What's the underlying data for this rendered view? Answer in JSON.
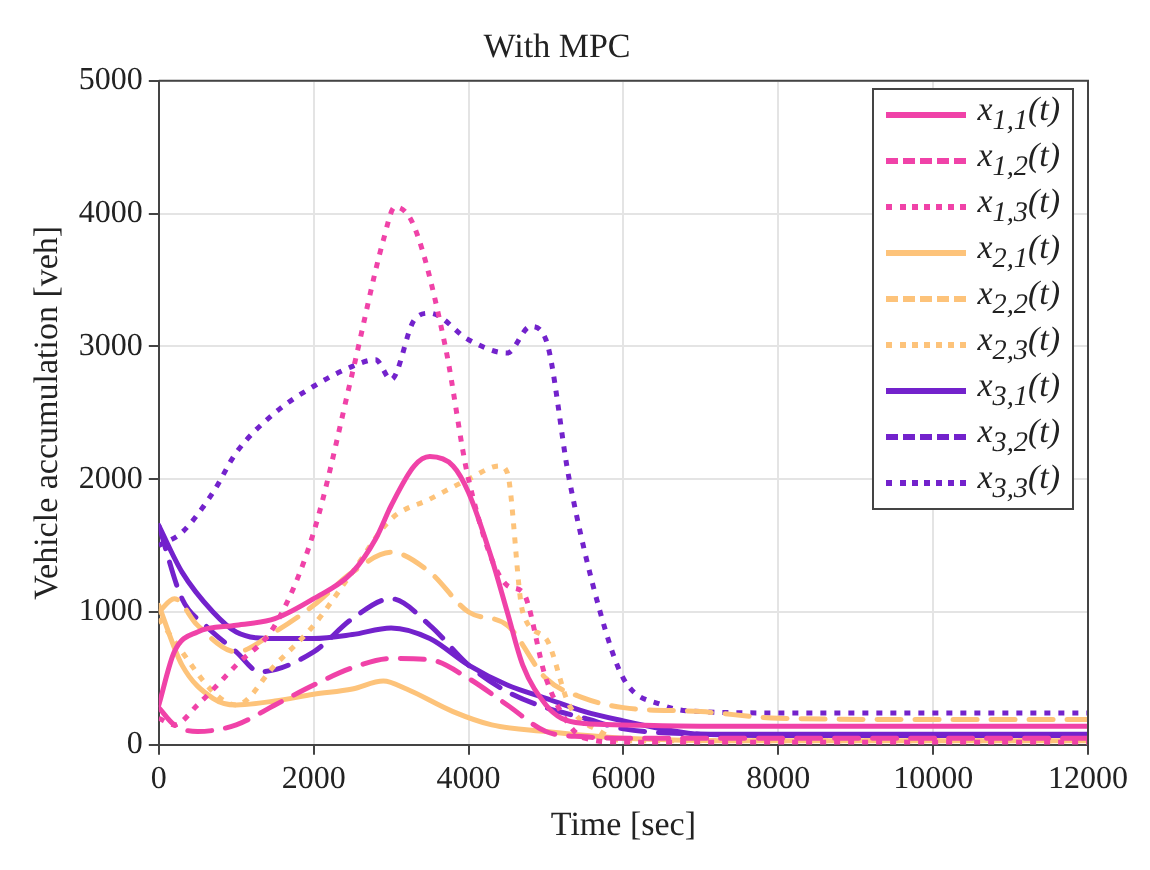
{
  "chart_data": {
    "type": "line",
    "title": "With MPC",
    "xlabel": "Time [sec]",
    "ylabel": "Vehicle accumulation [veh]",
    "xlim": [
      0,
      12000
    ],
    "xticks": [
      0,
      2000,
      4000,
      6000,
      8000,
      10000,
      12000
    ],
    "ylim": [
      0,
      5000
    ],
    "yticks": [
      0,
      1000,
      2000,
      3000,
      4000,
      5000
    ],
    "grid": true,
    "legend": "top right",
    "marker": "none",
    "series": [
      {
        "name": "x$_{1,1}$(t)",
        "color": "#f042a8",
        "line_style": "solid",
        "x": [
          0,
          200,
          500,
          1000,
          1500,
          2000,
          2500,
          2800,
          3000,
          3300,
          3500,
          3800,
          4000,
          4300,
          4500,
          4700,
          5000,
          5200,
          5500,
          6000,
          7000,
          8000,
          10000,
          12000
        ],
        "values": [
          300,
          700,
          850,
          900,
          950,
          1100,
          1300,
          1550,
          1800,
          2100,
          2170,
          2100,
          1900,
          1400,
          1000,
          600,
          300,
          200,
          160,
          150,
          140,
          140,
          140,
          140
        ]
      },
      {
        "name": "x$_{1,2}$(t)",
        "color": "#f042a8",
        "line_style": "dashed",
        "x": [
          0,
          200,
          500,
          1000,
          1500,
          2000,
          2500,
          3000,
          3500,
          4000,
          4500,
          5000,
          5500,
          6000,
          8000,
          10000,
          12000
        ],
        "values": [
          280,
          150,
          100,
          150,
          300,
          450,
          580,
          650,
          640,
          500,
          300,
          100,
          60,
          50,
          50,
          50,
          50
        ]
      },
      {
        "name": "x$_{1,3}$(t)",
        "color": "#f042a8",
        "line_style": "dotted",
        "x": [
          0,
          200,
          500,
          1000,
          1500,
          2000,
          2500,
          2900,
          3050,
          3300,
          3700,
          4000,
          4500,
          4700,
          5000,
          5300,
          5500,
          6000,
          8000,
          10000,
          12000
        ],
        "values": [
          200,
          150,
          300,
          600,
          900,
          1600,
          2800,
          3800,
          4050,
          3900,
          3000,
          2000,
          1200,
          1150,
          500,
          150,
          50,
          20,
          20,
          20,
          20
        ]
      },
      {
        "name": "x$_{2,1}$(t)",
        "color": "#fdc37a",
        "line_style": "solid",
        "x": [
          0,
          300,
          700,
          1000,
          1500,
          2000,
          2500,
          2900,
          3200,
          3800,
          4300,
          5000,
          6000,
          8000,
          10000,
          12000
        ],
        "values": [
          1050,
          600,
          350,
          300,
          330,
          380,
          420,
          480,
          420,
          250,
          150,
          100,
          50,
          30,
          30,
          30
        ]
      },
      {
        "name": "x$_{2,2}$(t)",
        "color": "#fdc37a",
        "line_style": "dashed",
        "x": [
          0,
          200,
          500,
          1000,
          1500,
          2000,
          2500,
          3000,
          3500,
          4000,
          4500,
          5000,
          5500,
          6000,
          7000,
          8000,
          10000,
          12000
        ],
        "values": [
          1000,
          1100,
          900,
          700,
          850,
          1050,
          1300,
          1450,
          1300,
          1000,
          900,
          500,
          350,
          280,
          250,
          200,
          190,
          190
        ]
      },
      {
        "name": "x$_{2,3}$(t)",
        "color": "#fdc37a",
        "line_style": "dotted",
        "x": [
          0,
          300,
          700,
          1000,
          1500,
          2000,
          2500,
          3000,
          3500,
          4000,
          4400,
          4500,
          4700,
          5000,
          5300,
          5700,
          6000,
          8000,
          10000,
          12000
        ],
        "values": [
          950,
          700,
          400,
          300,
          600,
          900,
          1300,
          1700,
          1850,
          2000,
          2100,
          2050,
          1000,
          800,
          300,
          100,
          30,
          30,
          30,
          30
        ]
      },
      {
        "name": "x$_{3,1}$(t)",
        "color": "#7322cc",
        "line_style": "solid",
        "x": [
          0,
          300,
          700,
          1000,
          1500,
          2000,
          2500,
          3000,
          3500,
          4000,
          4500,
          5000,
          5500,
          6000,
          6500,
          7000,
          8000,
          10000,
          12000
        ],
        "values": [
          1650,
          1300,
          1000,
          850,
          800,
          800,
          830,
          880,
          800,
          600,
          450,
          350,
          250,
          180,
          120,
          80,
          80,
          80,
          80
        ]
      },
      {
        "name": "x$_{3,2}$(t)",
        "color": "#7322cc",
        "line_style": "dashed",
        "x": [
          0,
          300,
          600,
          1000,
          1300,
          2000,
          2500,
          3000,
          3500,
          4000,
          4500,
          5000,
          5500,
          6000,
          7000,
          8000,
          10000,
          12000
        ],
        "values": [
          1650,
          1100,
          900,
          700,
          550,
          700,
          950,
          1100,
          900,
          600,
          400,
          280,
          200,
          120,
          80,
          70,
          70,
          70
        ]
      },
      {
        "name": "x$_{3,3}$(t)",
        "color": "#7322cc",
        "line_style": "dotted",
        "x": [
          0,
          300,
          700,
          1000,
          1500,
          2000,
          2500,
          2800,
          3000,
          3300,
          3500,
          4000,
          4500,
          4800,
          5000,
          5300,
          5700,
          6000,
          6500,
          7000,
          8000,
          10000,
          12000
        ],
        "values": [
          1500,
          1600,
          1900,
          2200,
          2500,
          2700,
          2850,
          2900,
          2750,
          3200,
          3250,
          3050,
          2950,
          3150,
          3050,
          2000,
          1000,
          500,
          300,
          250,
          240,
          240,
          240
        ]
      }
    ]
  }
}
